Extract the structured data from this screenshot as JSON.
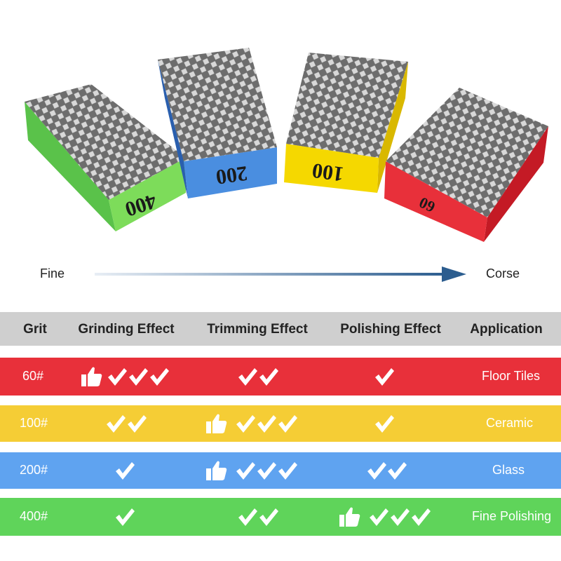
{
  "blocks": [
    {
      "label": "400"
    },
    {
      "label": "200"
    },
    {
      "label": "100"
    },
    {
      "label": "60"
    }
  ],
  "scale": {
    "start": "Fine",
    "end": "Corse"
  },
  "table": {
    "header": [
      "Grit",
      "Grinding Effect",
      "Trimming Effect",
      "Polishing Effect",
      "Application"
    ],
    "rows": [
      {
        "grit": "60#",
        "application": "Floor Tiles"
      },
      {
        "grit": "100#",
        "application": "Ceramic"
      },
      {
        "grit": "200#",
        "application": "Glass"
      },
      {
        "grit": "400#",
        "application": "Fine Polishing"
      }
    ]
  }
}
